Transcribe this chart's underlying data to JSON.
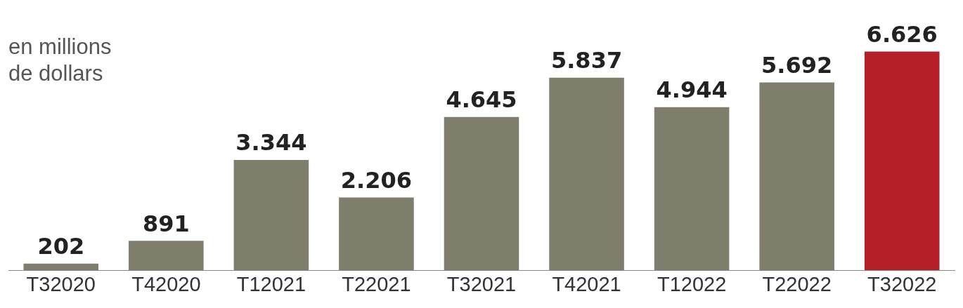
{
  "chart_data": {
    "type": "bar",
    "subtitle": "en millions\nde dollars",
    "categories": [
      "T32020",
      "T42020",
      "T12021",
      "T22021",
      "T32021",
      "T42021",
      "T12022",
      "T22022",
      "T32022"
    ],
    "values": [
      202,
      891,
      3344,
      2206,
      4645,
      5837,
      4944,
      5692,
      6626
    ],
    "value_labels": [
      "202",
      "891",
      "3.344",
      "2.206",
      "4.645",
      "5.837",
      "4.944",
      "5.692",
      "6.626"
    ],
    "colors": [
      "#7f7d6b",
      "#7f7d6b",
      "#7f7d6b",
      "#7f7d6b",
      "#7f7d6b",
      "#7f7d6b",
      "#7f7d6b",
      "#7f7d6b",
      "#b41f29"
    ],
    "grid": false,
    "legend": false
  }
}
